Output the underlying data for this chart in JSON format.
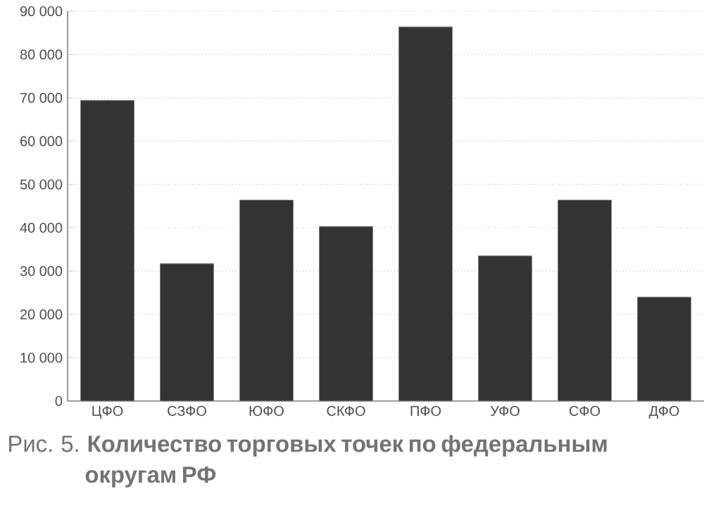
{
  "chart_data": {
    "type": "bar",
    "title": "Рис. 5. **Количество торговых точек по федеральным округам РФ**",
    "categories": [
      "ЦФО",
      "СЗФО",
      "ЮФО",
      "СКФО",
      "ПФО",
      "УФО",
      "СФО",
      "ДФО"
    ],
    "values": [
      69400,
      31700,
      46400,
      40300,
      86400,
      33500,
      46400,
      24000
    ],
    "color": "#333333",
    "ylim": [
      0,
      90000
    ],
    "yticks": [
      {
        "value": 0,
        "label": "0"
      },
      {
        "value": 10000,
        "label": "10 000"
      },
      {
        "value": 20000,
        "label": "20 000"
      },
      {
        "value": 30000,
        "label": "30 000"
      },
      {
        "value": 40000,
        "label": "40 000"
      },
      {
        "value": 50000,
        "label": "50 000"
      },
      {
        "value": 60000,
        "label": "60 000"
      },
      {
        "value": 70000,
        "label": "70 000"
      },
      {
        "value": 80000,
        "label": "80 000"
      },
      {
        "value": 90000,
        "label": "90 000"
      }
    ],
    "grid": "y"
  }
}
